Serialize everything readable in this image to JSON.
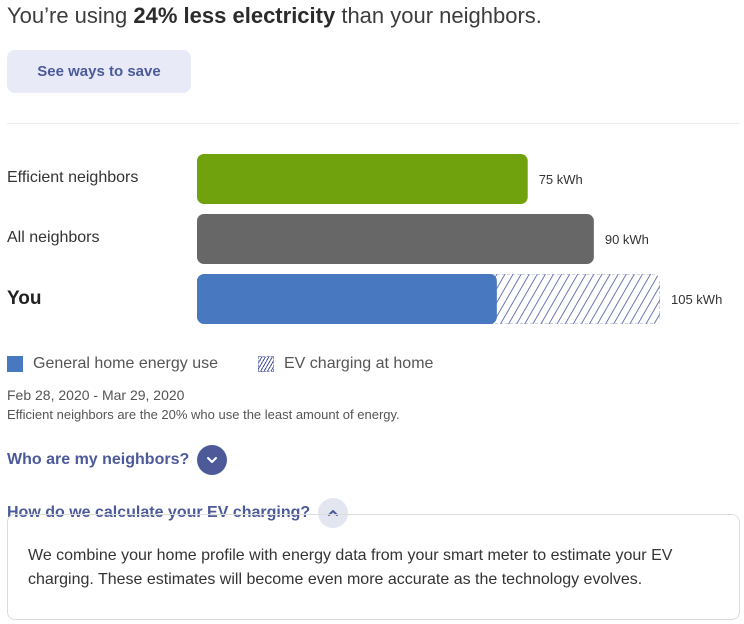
{
  "headline": {
    "prefix": "You’re using ",
    "highlight": "24% less electricity",
    "suffix": " than your neighbors."
  },
  "cta": {
    "label": "See ways to save"
  },
  "comparison": {
    "rows": [
      {
        "label": "Efficient neighbors",
        "value_label": "75 kWh"
      },
      {
        "label": "All neighbors",
        "value_label": "90 kWh"
      },
      {
        "label": "You",
        "value_label": "105 kWh"
      }
    ]
  },
  "chart_data": {
    "type": "bar",
    "orientation": "horizontal",
    "stacked": true,
    "categories": [
      "Efficient neighbors",
      "All neighbors",
      "You"
    ],
    "series": [
      {
        "name": "General home energy use",
        "values": [
          75,
          90,
          68
        ]
      },
      {
        "name": "EV charging at home",
        "values": [
          0,
          0,
          37
        ]
      }
    ],
    "totals": [
      75,
      90,
      105
    ],
    "unit": "kWh",
    "xlim": [
      0,
      105
    ],
    "grid": false,
    "legend_position": "bottom-left",
    "colors": {
      "efficient": "#6fa20c",
      "all": "#676767",
      "you_general": "#4878c0",
      "you_ev_stripe": "#4a55a0"
    }
  },
  "legend": {
    "general_label": "General home energy use",
    "ev_label": "EV charging at home"
  },
  "period": {
    "date_range": "Feb 28, 2020 - Mar 29, 2020",
    "footnote": "Efficient neighbors are the 20% who use the least amount of energy."
  },
  "faq": {
    "neighbors_question": "Who are my neighbors?",
    "neighbors_icon": "chevron-down-icon",
    "ev_question": "How do we calculate your EV charging?",
    "ev_icon": "chevron-up-icon",
    "ev_answer": "We combine your home profile with energy data from your smart meter to estimate your EV charging. These estimates will become even more accurate as the technology evolves."
  }
}
